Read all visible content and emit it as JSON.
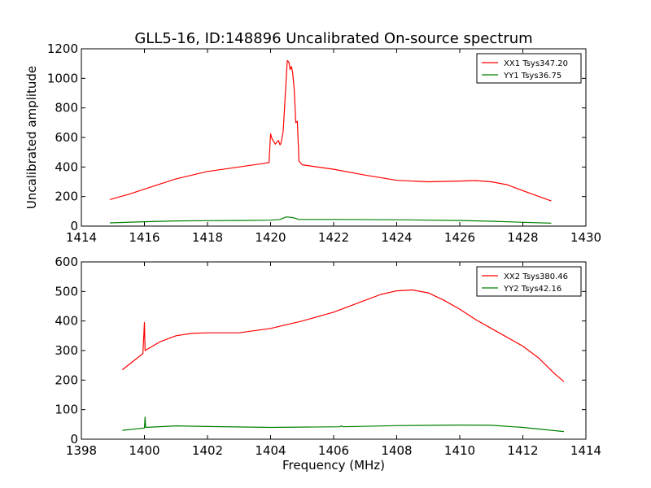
{
  "figure": {
    "title": "GLL5-16, ID:148896 Uncalibrated On-source spectrum",
    "ylabel": "Uncalibrated amplitude",
    "xlabel": "Frequency (MHz)"
  },
  "colors": {
    "red": "#ff0000",
    "green": "#008000"
  },
  "chart_data": [
    {
      "type": "line",
      "xlim": [
        1414,
        1430
      ],
      "ylim": [
        0,
        1200
      ],
      "xticks": [
        1414,
        1416,
        1418,
        1420,
        1422,
        1424,
        1426,
        1428,
        1430
      ],
      "yticks": [
        0,
        200,
        400,
        600,
        800,
        1000,
        1200
      ],
      "legend_position": "top-right",
      "series": [
        {
          "name": "XX1 Tsys347.20",
          "color": "red",
          "points": [
            [
              1414.9,
              180
            ],
            [
              1415.5,
              215
            ],
            [
              1416.2,
              265
            ],
            [
              1417,
              320
            ],
            [
              1418,
              370
            ],
            [
              1419,
              400
            ],
            [
              1419.8,
              425
            ],
            [
              1419.95,
              430
            ],
            [
              1420.0,
              625
            ],
            [
              1420.05,
              590
            ],
            [
              1420.15,
              555
            ],
            [
              1420.25,
              580
            ],
            [
              1420.3,
              550
            ],
            [
              1420.33,
              560
            ],
            [
              1420.4,
              640
            ],
            [
              1420.47,
              900
            ],
            [
              1420.53,
              1120
            ],
            [
              1420.58,
              1110
            ],
            [
              1420.62,
              1060
            ],
            [
              1420.66,
              1080
            ],
            [
              1420.7,
              1040
            ],
            [
              1420.75,
              920
            ],
            [
              1420.8,
              700
            ],
            [
              1420.85,
              710
            ],
            [
              1420.9,
              440
            ],
            [
              1421,
              415
            ],
            [
              1422,
              385
            ],
            [
              1423,
              345
            ],
            [
              1424,
              310
            ],
            [
              1425,
              300
            ],
            [
              1426,
              305
            ],
            [
              1426.5,
              308
            ],
            [
              1427,
              300
            ],
            [
              1427.5,
              280
            ],
            [
              1428,
              240
            ],
            [
              1428.9,
              170
            ]
          ]
        },
        {
          "name": "YY1 Tsys36.75",
          "color": "green",
          "points": [
            [
              1414.9,
              22
            ],
            [
              1416,
              30
            ],
            [
              1417,
              35
            ],
            [
              1418,
              37
            ],
            [
              1419,
              38
            ],
            [
              1420,
              40
            ],
            [
              1420.3,
              45
            ],
            [
              1420.5,
              62
            ],
            [
              1420.7,
              58
            ],
            [
              1420.9,
              45
            ],
            [
              1422,
              45
            ],
            [
              1424,
              43
            ],
            [
              1426,
              38
            ],
            [
              1427,
              33
            ],
            [
              1428,
              26
            ],
            [
              1428.9,
              20
            ]
          ]
        }
      ]
    },
    {
      "type": "line",
      "xlim": [
        1398,
        1414
      ],
      "ylim": [
        0,
        600
      ],
      "xticks": [
        1398,
        1400,
        1402,
        1404,
        1406,
        1408,
        1410,
        1412,
        1414
      ],
      "yticks": [
        0,
        100,
        200,
        300,
        400,
        500,
        600
      ],
      "legend_position": "top-right",
      "series": [
        {
          "name": "XX2 Tsys380.46",
          "color": "red",
          "points": [
            [
              1399.3,
              235
            ],
            [
              1399.6,
              260
            ],
            [
              1399.95,
              290
            ],
            [
              1400.0,
              395
            ],
            [
              1400.02,
              300
            ],
            [
              1400.5,
              330
            ],
            [
              1401,
              350
            ],
            [
              1401.5,
              358
            ],
            [
              1402,
              360
            ],
            [
              1403,
              360
            ],
            [
              1404,
              375
            ],
            [
              1405,
              400
            ],
            [
              1406,
              430
            ],
            [
              1407,
              470
            ],
            [
              1407.5,
              490
            ],
            [
              1408,
              502
            ],
            [
              1408.5,
              505
            ],
            [
              1409,
              495
            ],
            [
              1409.5,
              470
            ],
            [
              1410,
              440
            ],
            [
              1410.5,
              405
            ],
            [
              1411,
              375
            ],
            [
              1412,
              315
            ],
            [
              1412.5,
              275
            ],
            [
              1413,
              222
            ],
            [
              1413.3,
              195
            ]
          ]
        },
        {
          "name": "YY2 Tsys42.16",
          "color": "green",
          "points": [
            [
              1399.3,
              30
            ],
            [
              1400,
              38
            ],
            [
              1400.02,
              75
            ],
            [
              1400.04,
              40
            ],
            [
              1401,
              45
            ],
            [
              1402,
              43
            ],
            [
              1404,
              40
            ],
            [
              1406.2,
              42
            ],
            [
              1406.25,
              45
            ],
            [
              1406.3,
              42
            ],
            [
              1408,
              46
            ],
            [
              1410,
              48
            ],
            [
              1411,
              47
            ],
            [
              1412,
              40
            ],
            [
              1413.3,
              26
            ]
          ]
        }
      ]
    }
  ]
}
